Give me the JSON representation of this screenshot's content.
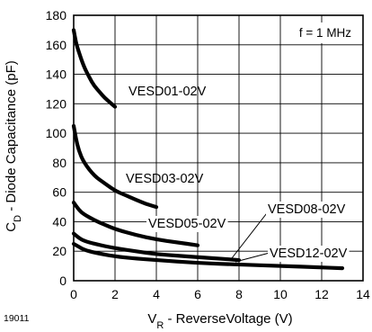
{
  "chart_data": {
    "type": "line",
    "figure_id": "19011",
    "annotation": "f = 1 MHz",
    "ylabel": {
      "main": "C",
      "sub": "D",
      "rest": " - Diode Capacitance (pF)"
    },
    "xlabel": {
      "main": "V",
      "sub": "R",
      "rest": " - ReverseVoltage (V)"
    },
    "xlim": [
      0,
      14
    ],
    "ylim": [
      0,
      180
    ],
    "xticks": [
      0,
      2,
      4,
      6,
      8,
      10,
      12,
      14
    ],
    "yticks": [
      0,
      20,
      40,
      60,
      80,
      100,
      120,
      140,
      160,
      180
    ],
    "grid": true,
    "legend": "none",
    "series": [
      {
        "name": "VESD01-02V",
        "x": [
          0,
          0.1,
          0.25,
          0.5,
          0.75,
          1.0,
          1.25,
          1.5,
          1.75,
          2.0
        ],
        "y": [
          170,
          162,
          155,
          145,
          138,
          132,
          128,
          124,
          121,
          118
        ]
      },
      {
        "name": "VESD03-02V",
        "x": [
          0,
          0.1,
          0.25,
          0.5,
          1.0,
          1.5,
          2.0,
          2.5,
          3.0,
          3.5,
          4.0
        ],
        "y": [
          105,
          97,
          88,
          80,
          71,
          66,
          61,
          58,
          55,
          52,
          50
        ]
      },
      {
        "name": "VESD05-02V",
        "x": [
          0,
          0.25,
          0.5,
          1.0,
          1.5,
          2.0,
          3.0,
          4.0,
          5.0,
          6.0
        ],
        "y": [
          53,
          48,
          45,
          41,
          38,
          35,
          31,
          28,
          26,
          24
        ]
      },
      {
        "name": "VESD08-02V",
        "x": [
          0,
          0.25,
          0.5,
          1.0,
          2.0,
          3.0,
          4.0,
          5.0,
          6.0,
          7.0,
          8.0
        ],
        "y": [
          32,
          29,
          27,
          25,
          22,
          20,
          18,
          17,
          16,
          15,
          14
        ]
      },
      {
        "name": "VESD12-02V",
        "x": [
          0,
          0.25,
          0.5,
          1.0,
          2.0,
          3.0,
          4.0,
          6.0,
          8.0,
          10.0,
          12.0,
          13.0
        ],
        "y": [
          25,
          23,
          21,
          19,
          16.5,
          15,
          14,
          12,
          11,
          10,
          9,
          8.5
        ]
      }
    ]
  }
}
